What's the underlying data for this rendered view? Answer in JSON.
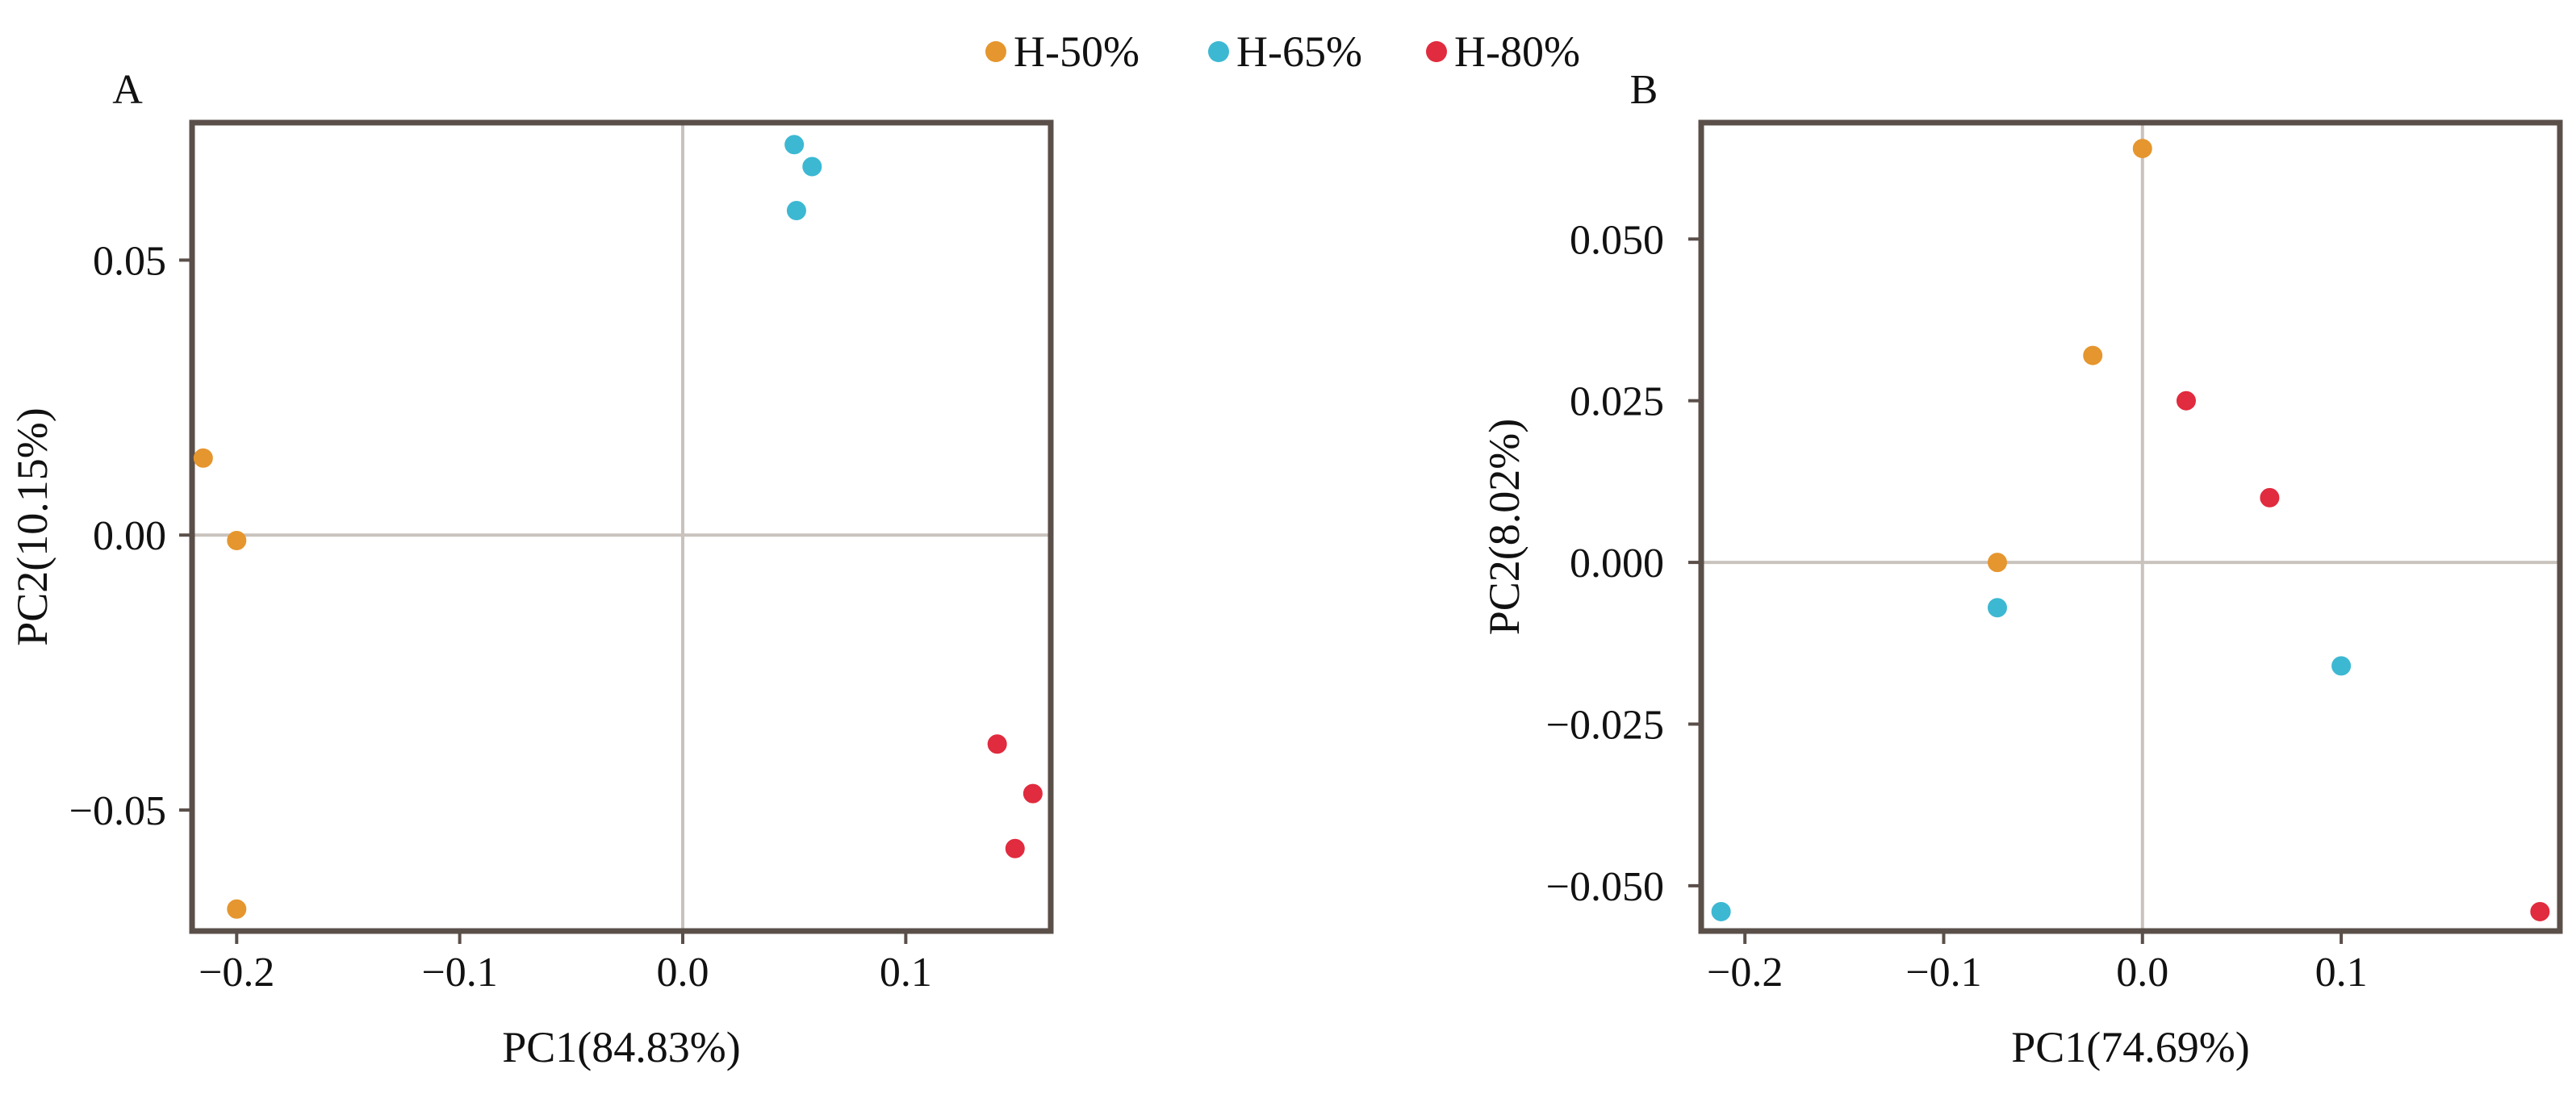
{
  "legend": [
    {
      "label": "H-50%",
      "color": "#E5962E"
    },
    {
      "label": "H-65%",
      "color": "#3DB8D2"
    },
    {
      "label": "H-80%",
      "color": "#E12B3E"
    }
  ],
  "chart_data": [
    {
      "type": "scatter",
      "panel_label": "A",
      "xlabel": "PC1(84.83%)",
      "ylabel": "PC2(10.15%)",
      "xlim": [
        -0.22,
        0.165
      ],
      "ylim": [
        -0.072,
        0.075
      ],
      "xticks": [
        -0.2,
        -0.1,
        0.0,
        0.1
      ],
      "xtick_labels": [
        "−0.2",
        "−0.1",
        "0.0",
        "0.1"
      ],
      "yticks": [
        -0.05,
        0.0,
        0.05
      ],
      "ytick_labels": [
        "−0.05",
        "0.00",
        "0.05"
      ],
      "zero_lines": true,
      "grid": false,
      "series": [
        {
          "name": "H-50%",
          "color": "#E5962E",
          "points": [
            [
              -0.215,
              0.014
            ],
            [
              -0.2,
              -0.001
            ],
            [
              -0.2,
              -0.068
            ]
          ]
        },
        {
          "name": "H-65%",
          "color": "#3DB8D2",
          "points": [
            [
              0.05,
              0.071
            ],
            [
              0.058,
              0.067
            ],
            [
              0.051,
              0.059
            ]
          ]
        },
        {
          "name": "H-80%",
          "color": "#E12B3E",
          "points": [
            [
              0.141,
              -0.038
            ],
            [
              0.157,
              -0.047
            ],
            [
              0.149,
              -0.057
            ]
          ]
        }
      ]
    },
    {
      "type": "scatter",
      "panel_label": "B",
      "xlabel": "PC1(74.69%)",
      "ylabel": "PC2(8.02%)",
      "xlim": [
        -0.222,
        0.21
      ],
      "ylim": [
        -0.057,
        0.068
      ],
      "xticks": [
        -0.2,
        -0.1,
        0.0,
        0.1
      ],
      "xtick_labels": [
        "−0.2",
        "−0.1",
        "0.0",
        "0.1"
      ],
      "yticks": [
        -0.05,
        -0.025,
        0.0,
        0.025,
        0.05
      ],
      "ytick_labels": [
        "−0.050",
        "−0.025",
        "0.000",
        "0.025",
        "0.050"
      ],
      "zero_lines": true,
      "grid": false,
      "series": [
        {
          "name": "H-50%",
          "color": "#E5962E",
          "points": [
            [
              0.0,
              0.064
            ],
            [
              -0.025,
              0.032
            ],
            [
              -0.073,
              0.0
            ]
          ]
        },
        {
          "name": "H-65%",
          "color": "#3DB8D2",
          "points": [
            [
              -0.073,
              -0.007
            ],
            [
              0.1,
              -0.016
            ],
            [
              -0.212,
              -0.054
            ]
          ]
        },
        {
          "name": "H-80%",
          "color": "#E12B3E",
          "points": [
            [
              0.022,
              0.025
            ],
            [
              0.064,
              0.01
            ],
            [
              0.2,
              -0.054
            ]
          ]
        }
      ]
    }
  ]
}
